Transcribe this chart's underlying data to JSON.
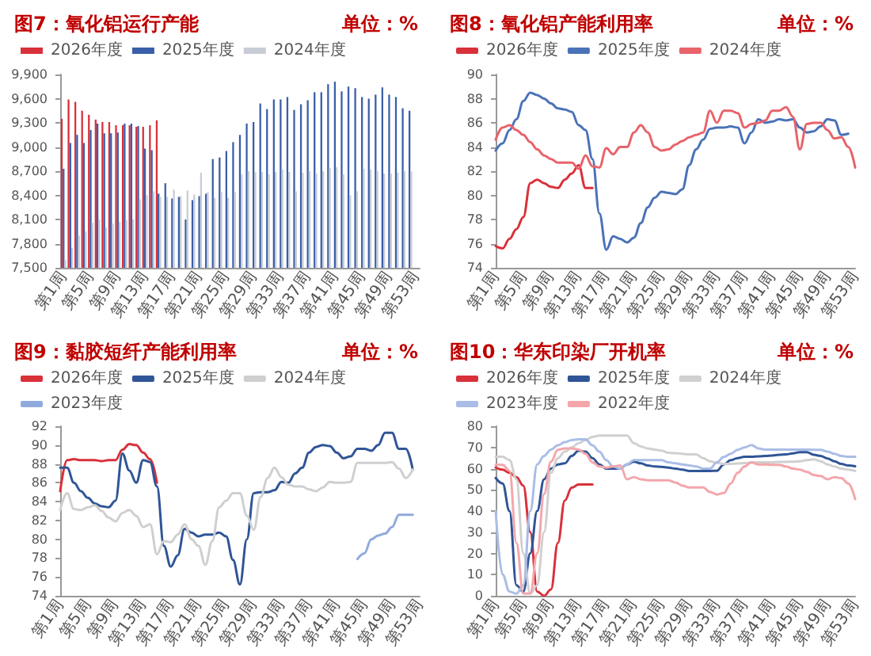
{
  "chart_data": [
    {
      "type": "bar",
      "title": "图7：氧化铝运行产能",
      "subtitle": "单位：%",
      "legend": "top",
      "grid": false,
      "categories": [
        "第1周",
        null,
        null,
        null,
        "第5周",
        null,
        null,
        null,
        "第9周",
        null,
        null,
        null,
        "第13周",
        null,
        null,
        null,
        "第17周",
        null,
        null,
        null,
        "第21周",
        null,
        null,
        null,
        "第25周",
        null,
        null,
        null,
        "第29周",
        null,
        null,
        null,
        "第33周",
        null,
        null,
        null,
        "第37周",
        null,
        null,
        null,
        "第41周",
        null,
        null,
        null,
        "第45周",
        null,
        null,
        null,
        "第49周",
        null,
        null,
        null,
        "第53周"
      ],
      "ylim": [
        7500,
        9900
      ],
      "yticks": [
        {
          "value": 7500,
          "label": "7,500"
        },
        {
          "value": 7800,
          "label": "7,800"
        },
        {
          "value": 8100,
          "label": "8,100"
        },
        {
          "value": 8400,
          "label": "8,400"
        },
        {
          "value": 8700,
          "label": "8,700"
        },
        {
          "value": 9000,
          "label": "9,000"
        },
        {
          "value": 9300,
          "label": "9,300"
        },
        {
          "value": 9600,
          "label": "9,600"
        },
        {
          "value": 9900,
          "label": "9,900"
        }
      ],
      "series": [
        {
          "name": "2026年度",
          "color": "#d9313a",
          "values": [
            9350,
            9590,
            9560,
            9450,
            9400,
            9340,
            9310,
            9310,
            9270,
            9270,
            9270,
            9250,
            9250,
            9270,
            9330,
            null,
            null,
            null,
            null,
            null,
            null,
            null,
            null,
            null,
            null,
            null,
            null,
            null,
            null,
            null,
            null,
            null,
            null,
            null,
            null,
            null,
            null,
            null,
            null,
            null,
            null,
            null,
            null,
            null,
            null,
            null,
            null,
            null,
            null,
            null,
            null,
            null,
            null
          ]
        },
        {
          "name": "2025年度",
          "color": "#3a5fa8",
          "values": [
            8730,
            9050,
            9150,
            9050,
            9210,
            9290,
            9170,
            9170,
            9180,
            9290,
            9290,
            9260,
            8980,
            8960,
            8420,
            8550,
            8360,
            8380,
            8100,
            8340,
            8390,
            8420,
            8850,
            8870,
            8950,
            9060,
            9150,
            9290,
            9310,
            9540,
            9470,
            9590,
            9590,
            9620,
            9460,
            9530,
            9580,
            9680,
            9680,
            9780,
            9810,
            9690,
            9750,
            9730,
            9620,
            9600,
            9650,
            9740,
            9650,
            9620,
            9480,
            9450,
            null
          ]
        },
        {
          "name": "2024年度",
          "color": "#c8ccd6",
          "values": [
            7600,
            7750,
            7900,
            7950,
            8060,
            8100,
            8000,
            8050,
            8070,
            8090,
            8100,
            8350,
            8400,
            8450,
            8380,
            8380,
            8470,
            8390,
            8460,
            8410,
            8680,
            8440,
            8370,
            8440,
            8370,
            8440,
            8660,
            8700,
            8690,
            8690,
            8660,
            8690,
            8720,
            8690,
            8450,
            8680,
            8700,
            8670,
            8700,
            8740,
            8750,
            8660,
            8400,
            8450,
            8730,
            8720,
            8700,
            8670,
            8670,
            8680,
            8700,
            8700,
            null
          ]
        }
      ]
    },
    {
      "type": "line",
      "title": "图8：氧化铝产能利用率",
      "subtitle": "单位：%",
      "legend": "top",
      "grid": false,
      "marker": "none",
      "categories": [
        "第1周",
        null,
        null,
        null,
        "第5周",
        null,
        null,
        null,
        "第9周",
        null,
        null,
        null,
        "第13周",
        null,
        null,
        null,
        "第17周",
        null,
        null,
        null,
        "第21周",
        null,
        null,
        null,
        "第25周",
        null,
        null,
        null,
        "第29周",
        null,
        null,
        null,
        "第33周",
        null,
        null,
        null,
        "第37周",
        null,
        null,
        null,
        "第41周",
        null,
        null,
        null,
        "第45周",
        null,
        null,
        null,
        "第49周",
        null,
        null,
        null,
        "第53周"
      ],
      "ylim": [
        74,
        90
      ],
      "yticks": [
        74,
        76,
        78,
        80,
        82,
        84,
        86,
        88,
        90
      ],
      "series": [
        {
          "name": "2026年度",
          "color": "#d9313a",
          "values": [
            75.8,
            75.6,
            76.4,
            77.2,
            78.2,
            81.0,
            81.3,
            81.0,
            80.7,
            80.6,
            81.3,
            81.8,
            82.5,
            80.6,
            80.6,
            null,
            null,
            null,
            null,
            null,
            null,
            null,
            null,
            null,
            null,
            null,
            null,
            null,
            null,
            null,
            null,
            null,
            null,
            null,
            null,
            null,
            null,
            null,
            null,
            null,
            null,
            null,
            null,
            null,
            null,
            null,
            null,
            null,
            null,
            null,
            null,
            null,
            null
          ]
        },
        {
          "name": "2025年度",
          "color": "#4a72b8",
          "values": [
            83.7,
            84.3,
            85.4,
            86.3,
            87.8,
            88.5,
            88.3,
            88.0,
            87.6,
            87.2,
            87.1,
            86.9,
            85.8,
            85.4,
            83.0,
            78.5,
            75.5,
            76.6,
            76.4,
            76.1,
            76.5,
            77.7,
            79.0,
            79.8,
            80.3,
            80.2,
            80.1,
            80.5,
            82.5,
            83.8,
            84.6,
            85.5,
            85.6,
            85.6,
            85.7,
            85.6,
            84.3,
            85.2,
            86.3,
            86.0,
            86.1,
            86.3,
            86.2,
            86.3,
            85.6,
            85.2,
            85.3,
            85.7,
            86.3,
            86.2,
            85.0,
            85.1,
            null
          ]
        },
        {
          "name": "2024年度",
          "color": "#e8636a",
          "values": [
            84.6,
            85.6,
            85.8,
            85.4,
            85.0,
            84.4,
            83.8,
            83.3,
            83.0,
            82.7,
            82.7,
            82.7,
            82.2,
            83.3,
            82.4,
            82.3,
            83.9,
            83.4,
            84.0,
            84.0,
            85.2,
            85.8,
            85.2,
            84.0,
            83.7,
            83.8,
            84.2,
            84.5,
            84.8,
            85.0,
            85.2,
            87.0,
            86.0,
            87.0,
            87.0,
            86.8,
            85.6,
            85.9,
            86.0,
            86.2,
            87.0,
            87.0,
            87.3,
            86.5,
            83.8,
            85.9,
            86.0,
            86.0,
            85.4,
            84.7,
            84.8,
            84.0,
            82.3
          ]
        }
      ]
    },
    {
      "type": "line",
      "title": "图9：黏胶短纤产能利用率",
      "subtitle": "单位：%",
      "legend": "top",
      "grid": false,
      "marker": "none",
      "categories": [
        "第1周",
        null,
        null,
        null,
        "第5周",
        null,
        null,
        null,
        "第9周",
        null,
        null,
        null,
        "第13周",
        null,
        null,
        null,
        "第17周",
        null,
        null,
        null,
        "第21周",
        null,
        null,
        null,
        "第25周",
        null,
        null,
        null,
        "第29周",
        null,
        null,
        null,
        "第33周",
        null,
        null,
        null,
        "第37周",
        null,
        null,
        null,
        "第41周",
        null,
        null,
        null,
        "第45周",
        null,
        null,
        null,
        "第49周",
        null,
        null,
        null,
        "第53周"
      ],
      "ylim": [
        74,
        92
      ],
      "yticks": [
        74,
        76,
        78,
        80,
        82,
        84,
        86,
        88,
        90,
        92
      ],
      "series": [
        {
          "name": "2026年度",
          "color": "#d9313a",
          "values": [
            85.1,
            88.4,
            88.5,
            88.4,
            88.4,
            88.4,
            88.3,
            88.4,
            88.4,
            89.5,
            90.1,
            90.0,
            89.2,
            88.5,
            86.0,
            null,
            null,
            null,
            null,
            null,
            null,
            null,
            null,
            null,
            null,
            null,
            null,
            null,
            null,
            null,
            null,
            null,
            null,
            null,
            null,
            null,
            null,
            null,
            null,
            null,
            null,
            null,
            null,
            null,
            null,
            null,
            null,
            null,
            null,
            null,
            null,
            null,
            null
          ]
        },
        {
          "name": "2025年度",
          "color": "#2f5597",
          "values": [
            87.6,
            87.6,
            86.0,
            85.1,
            84.4,
            83.8,
            83.5,
            83.4,
            84.1,
            89.1,
            87.3,
            86.0,
            88.4,
            88.2,
            85.6,
            79.3,
            77.1,
            78.3,
            81.1,
            80.7,
            80.3,
            80.5,
            80.5,
            80.7,
            80.3,
            77.8,
            75.2,
            80.0,
            84.9,
            85.0,
            85.0,
            85.2,
            86.1,
            86.0,
            87.0,
            87.6,
            89.2,
            89.8,
            90.0,
            89.9,
            89.2,
            88.6,
            88.8,
            89.6,
            89.6,
            89.4,
            90.0,
            91.3,
            91.3,
            89.6,
            89.6,
            87.4,
            null
          ]
        },
        {
          "name": "2024年度",
          "color": "#cfcfcf",
          "values": [
            83.1,
            84.9,
            83.2,
            83.1,
            83.4,
            83.6,
            83.0,
            82.3,
            81.9,
            82.8,
            83.1,
            82.5,
            81.3,
            81.6,
            78.4,
            79.8,
            79.7,
            80.5,
            81.6,
            80.0,
            79.3,
            77.3,
            79.8,
            83.4,
            84.1,
            84.9,
            84.9,
            82.5,
            81.0,
            84.5,
            86.5,
            87.6,
            86.6,
            85.8,
            85.6,
            85.6,
            85.3,
            85.1,
            85.5,
            86.1,
            86.0,
            86.0,
            86.1,
            88.1,
            88.1,
            88.1,
            88.1,
            88.1,
            88.2,
            87.5,
            86.5,
            87.4,
            null
          ]
        },
        {
          "name": "2023年度",
          "color": "#8faadc",
          "values": [
            null,
            null,
            null,
            null,
            null,
            null,
            null,
            null,
            null,
            null,
            null,
            null,
            null,
            null,
            null,
            null,
            null,
            null,
            null,
            null,
            null,
            null,
            null,
            null,
            null,
            null,
            null,
            null,
            null,
            null,
            null,
            null,
            null,
            null,
            null,
            null,
            null,
            null,
            null,
            null,
            null,
            null,
            null,
            77.9,
            78.5,
            80.0,
            80.4,
            80.6,
            81.3,
            82.6,
            82.6,
            82.6,
            null
          ]
        }
      ]
    },
    {
      "type": "line",
      "title": "图10：华东印染厂开机率",
      "subtitle": "单位：%",
      "legend": "top",
      "grid": false,
      "marker": "none",
      "categories": [
        "第1周",
        null,
        null,
        null,
        "第5周",
        null,
        null,
        null,
        "第9周",
        null,
        null,
        null,
        "第13周",
        null,
        null,
        null,
        "第17周",
        null,
        null,
        null,
        "第21周",
        null,
        null,
        null,
        "第25周",
        null,
        null,
        null,
        "第29周",
        null,
        null,
        null,
        "第33周",
        null,
        null,
        null,
        "第37周",
        null,
        null,
        null,
        "第41周",
        null,
        null,
        null,
        "第45周",
        null,
        null,
        null,
        "第49周",
        null,
        null,
        null,
        "第53周"
      ],
      "ylim": [
        0,
        80
      ],
      "yticks": [
        0,
        10,
        20,
        30,
        40,
        50,
        60,
        70,
        80
      ],
      "series": [
        {
          "name": "2026年度",
          "color": "#d9313a",
          "values": [
            60.5,
            59.5,
            58,
            56,
            52,
            30,
            2,
            0,
            3,
            25,
            45,
            51,
            52.5,
            52.5,
            52.5,
            null,
            null,
            null,
            null,
            null,
            null,
            null,
            null,
            null,
            null,
            null,
            null,
            null,
            null,
            null,
            null,
            null,
            null,
            null,
            null,
            null,
            null,
            null,
            null,
            null,
            null,
            null,
            null,
            null,
            null,
            null,
            null,
            null,
            null,
            null,
            null,
            null,
            null
          ]
        },
        {
          "name": "2025年度",
          "color": "#2f5597",
          "values": [
            55.6,
            53,
            40,
            5,
            2,
            20,
            40,
            55,
            60,
            62,
            62.5,
            66,
            68.5,
            68,
            65,
            62,
            60,
            60,
            60,
            62,
            63.3,
            62.5,
            61.5,
            61,
            60.8,
            60.5,
            60,
            59.5,
            58.9,
            58.9,
            58.9,
            58.9,
            59,
            62,
            64,
            65,
            65.6,
            65.6,
            65.8,
            66,
            66.2,
            66.5,
            66.7,
            67.2,
            67.8,
            67.8,
            66.5,
            66,
            64.8,
            63.5,
            62.2,
            61.5,
            61.1
          ]
        },
        {
          "name": "2024年度",
          "color": "#d0d0d0",
          "values": [
            65.6,
            65.6,
            64,
            55,
            20,
            1,
            5,
            30,
            58,
            65,
            68,
            70,
            72,
            73.5,
            75,
            75.6,
            75.6,
            75.6,
            75.6,
            75.6,
            72,
            70.5,
            69.5,
            69,
            68.5,
            67.5,
            67.3,
            67,
            66.7,
            66.7,
            65,
            63.5,
            62.7,
            62.2,
            62.2,
            62.4,
            62.6,
            62.8,
            63,
            63,
            63,
            63.2,
            63.2,
            63.3,
            63.5,
            64,
            64.4,
            63.5,
            62,
            61,
            60,
            59.5,
            58.9
          ]
        },
        {
          "name": "2023年度",
          "color": "#a9bde6",
          "values": [
            40,
            10,
            2,
            1,
            5,
            40,
            62,
            66,
            69,
            71,
            72.5,
            73.5,
            73.8,
            73.8,
            71,
            68,
            64,
            61,
            60,
            62,
            64,
            64,
            64,
            64,
            64,
            63,
            62.5,
            62,
            61.5,
            61,
            60,
            60,
            63,
            65.5,
            67,
            68.9,
            70,
            71.1,
            69.5,
            69,
            69,
            69,
            69,
            69,
            69,
            69,
            68.9,
            68.9,
            68,
            67,
            66,
            65.6,
            65.6
          ]
        },
        {
          "name": "2022年度",
          "color": "#f4a6ab",
          "values": [
            61.8,
            61.8,
            59,
            25,
            1,
            1,
            20,
            48,
            63.3,
            68.9,
            69.5,
            69.5,
            69,
            67,
            63,
            61,
            60.5,
            61,
            61.5,
            55,
            56,
            55,
            54.5,
            54.5,
            54.5,
            54.5,
            53.5,
            52,
            51.1,
            51.1,
            51.1,
            49,
            47.8,
            48.5,
            53,
            58,
            61,
            63,
            62,
            62,
            61.8,
            61.8,
            61,
            60,
            59.5,
            58.5,
            57,
            56.5,
            55,
            56,
            55.5,
            53,
            45.6
          ]
        }
      ]
    }
  ]
}
